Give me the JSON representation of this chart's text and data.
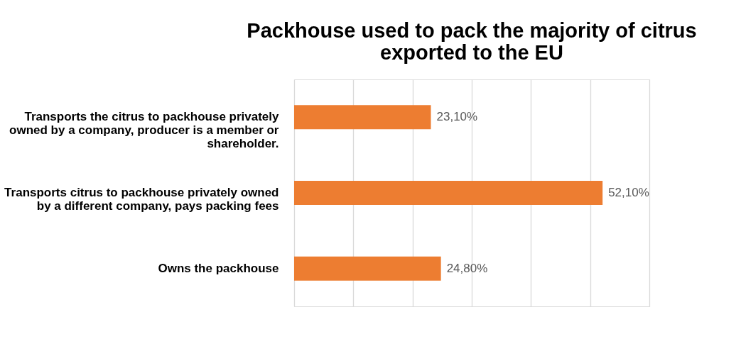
{
  "chart_data": {
    "type": "bar",
    "orientation": "horizontal",
    "title": "Packhouse used to pack the majority of citrus exported to the EU",
    "categories": [
      "Transports the citrus to packhouse privately owned by a company, producer is a member or shareholder.",
      "Transports citrus to packhouse privately owned by a different company, pays packing fees",
      "Owns the packhouse"
    ],
    "values": [
      23.1,
      52.1,
      24.8
    ],
    "value_labels": [
      "23,10%",
      "52,10%",
      "24,80%"
    ],
    "color": "#ed7d31",
    "xlim": [
      0,
      60
    ],
    "xticks": [
      {
        "value": 0,
        "label": null
      },
      {
        "value": 10,
        "label": null
      },
      {
        "value": 20,
        "label": null
      },
      {
        "value": 30,
        "label": null
      },
      {
        "value": 40,
        "label": null
      },
      {
        "value": 50,
        "label": null
      },
      {
        "value": 60,
        "label": null
      }
    ],
    "grid": "x",
    "tick_labels": "y"
  }
}
